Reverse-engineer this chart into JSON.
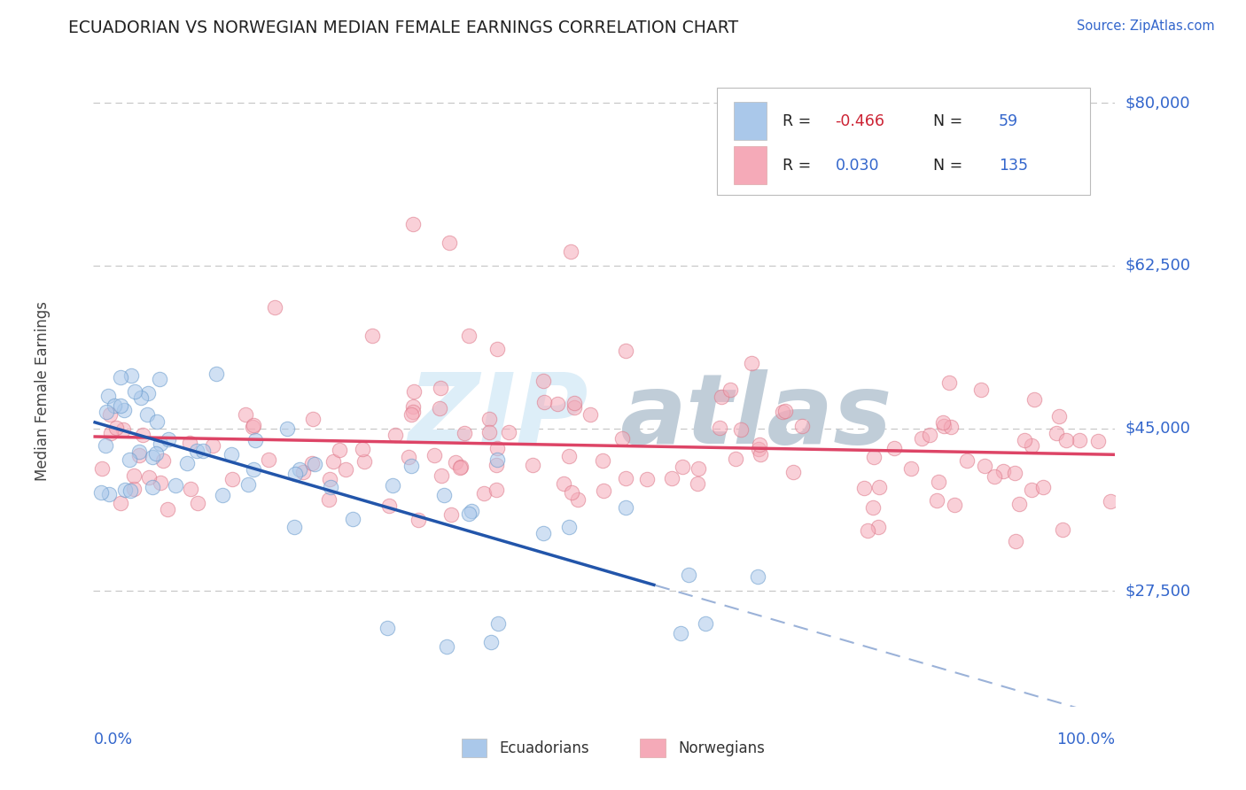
{
  "title": "ECUADORIAN VS NORWEGIAN MEDIAN FEMALE EARNINGS CORRELATION CHART",
  "source": "Source: ZipAtlas.com",
  "ylabel": "Median Female Earnings",
  "ytick_labels": [
    "$27,500",
    "$45,000",
    "$62,500",
    "$80,000"
  ],
  "ytick_values": [
    27500,
    45000,
    62500,
    80000
  ],
  "ymin": 15000,
  "ymax": 83000,
  "xmin": 0.0,
  "xmax": 1.0,
  "r_ecuadorian": "-0.466",
  "n_ecuadorian": "59",
  "r_norwegian": "0.030",
  "n_norwegian": "135",
  "color_ecuadorian_face": "#aac8ea",
  "color_ecuadorian_edge": "#6699cc",
  "color_norwegian_face": "#f5aab8",
  "color_norwegian_edge": "#dd7788",
  "color_ecuadorian_line": "#2255aa",
  "color_norwegian_line": "#dd4466",
  "color_text_blue": "#3366cc",
  "color_legend_value": "#3366cc",
  "color_legend_neg": "#cc2233",
  "background_color": "#ffffff",
  "grid_color": "#c8c8c8",
  "source_color": "#3366cc"
}
